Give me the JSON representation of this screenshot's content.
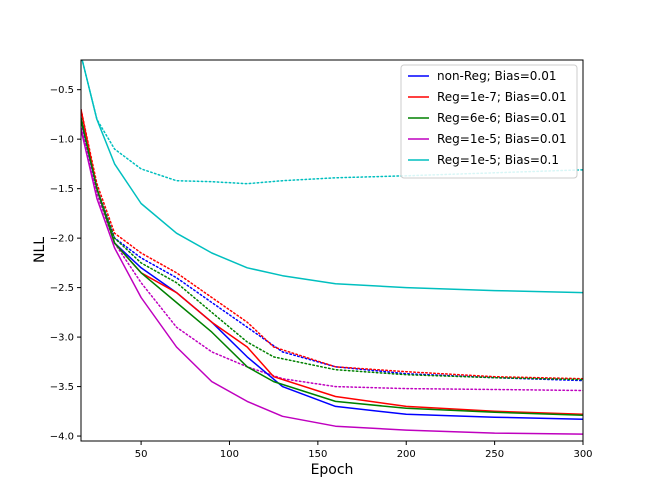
{
  "chart_data": {
    "type": "line",
    "title": "",
    "xlabel": "Epoch",
    "ylabel": "NLL",
    "xlim": [
      16,
      300
    ],
    "ylim": [
      -4.05,
      -0.2
    ],
    "xticks": [
      50,
      100,
      150,
      200,
      250,
      300
    ],
    "yticks": [
      -0.5,
      -1.0,
      -1.5,
      -2.0,
      -2.5,
      -3.0,
      -3.5,
      -4.0
    ],
    "xtick_labels": [
      "50",
      "100",
      "150",
      "200",
      "250",
      "300"
    ],
    "ytick_labels": [
      "−0.5",
      "−1.0",
      "−1.5",
      "−2.0",
      "−2.5",
      "−3.0",
      "−3.5",
      "−4.0"
    ],
    "legend_position": "upper right",
    "series": [
      {
        "name": "non-Reg; Bias=0.01",
        "color": "#0000ff",
        "x": [
          16,
          25,
          35,
          50,
          70,
          90,
          110,
          130,
          160,
          200,
          250,
          300
        ],
        "values": [
          -0.8,
          -1.5,
          -2.05,
          -2.3,
          -2.55,
          -2.85,
          -3.2,
          -3.5,
          -3.7,
          -3.78,
          -3.81,
          -3.83
        ],
        "test_values": [
          -0.7,
          -1.5,
          -2.0,
          -2.2,
          -2.4,
          -2.65,
          -2.9,
          -3.15,
          -3.3,
          -3.37,
          -3.41,
          -3.44
        ]
      },
      {
        "name": "Reg=1e-7; Bias=0.01",
        "color": "#ff0000",
        "x": [
          16,
          25,
          35,
          50,
          70,
          90,
          110,
          125,
          160,
          200,
          250,
          300
        ],
        "values": [
          -0.7,
          -1.5,
          -2.05,
          -2.35,
          -2.55,
          -2.85,
          -3.1,
          -3.4,
          -3.6,
          -3.7,
          -3.75,
          -3.78
        ],
        "test_values": [
          -0.7,
          -1.45,
          -1.95,
          -2.15,
          -2.35,
          -2.6,
          -2.85,
          -3.1,
          -3.3,
          -3.35,
          -3.4,
          -3.42
        ]
      },
      {
        "name": "Reg=6e-6; Bias=0.01",
        "color": "#008000",
        "x": [
          16,
          25,
          35,
          50,
          70,
          90,
          110,
          125,
          160,
          200,
          250,
          300
        ],
        "values": [
          -0.8,
          -1.5,
          -2.05,
          -2.35,
          -2.65,
          -2.95,
          -3.3,
          -3.45,
          -3.65,
          -3.72,
          -3.76,
          -3.79
        ],
        "test_values": [
          -0.75,
          -1.5,
          -2.0,
          -2.25,
          -2.45,
          -2.75,
          -3.05,
          -3.2,
          -3.33,
          -3.38,
          -3.41,
          -3.43
        ]
      },
      {
        "name": "Reg=1e-5; Bias=0.01",
        "color": "#bf00bf",
        "x": [
          16,
          25,
          35,
          50,
          70,
          90,
          110,
          130,
          160,
          200,
          250,
          300
        ],
        "values": [
          -0.9,
          -1.6,
          -2.1,
          -2.6,
          -3.1,
          -3.45,
          -3.65,
          -3.8,
          -3.9,
          -3.94,
          -3.97,
          -3.98
        ],
        "test_values": [
          -0.85,
          -1.55,
          -2.05,
          -2.45,
          -2.9,
          -3.15,
          -3.3,
          -3.42,
          -3.5,
          -3.52,
          -3.53,
          -3.54
        ]
      },
      {
        "name": "Reg=1e-5; Bias=0.1",
        "color": "#00bfbf",
        "x": [
          16,
          25,
          35,
          50,
          70,
          90,
          110,
          130,
          160,
          200,
          250,
          300
        ],
        "values": [
          -0.15,
          -0.8,
          -1.25,
          -1.65,
          -1.95,
          -2.15,
          -2.3,
          -2.38,
          -2.46,
          -2.5,
          -2.53,
          -2.55
        ],
        "test_values": [
          -0.15,
          -0.8,
          -1.1,
          -1.3,
          -1.42,
          -1.43,
          -1.45,
          -1.42,
          -1.39,
          -1.37,
          -1.34,
          -1.31
        ]
      }
    ]
  }
}
